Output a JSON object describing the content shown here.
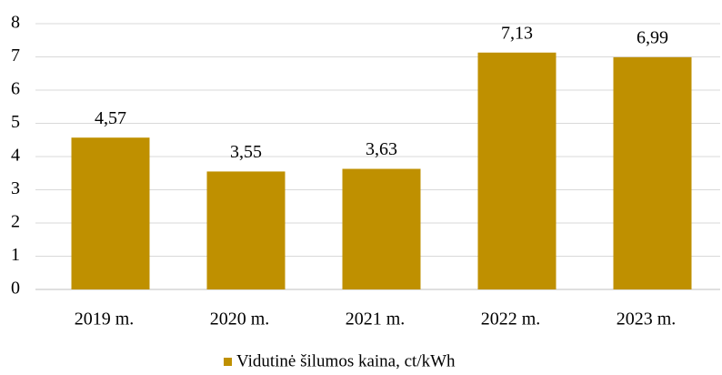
{
  "chart_data": {
    "type": "bar",
    "categories": [
      "2019 m.",
      "2020 m.",
      "2021 m.",
      "2022 m.",
      "2023 m."
    ],
    "series": [
      {
        "name": "Vidutinė šilumos kaina, ct/kWh",
        "color": "#bf9000",
        "values": [
          4.57,
          3.55,
          3.63,
          7.13,
          6.99
        ],
        "value_labels": [
          "4,57",
          "3,55",
          "3,63",
          "7,13",
          "6,99"
        ]
      }
    ],
    "ylim": [
      0,
      8
    ],
    "yticks": [
      0,
      1,
      2,
      3,
      4,
      5,
      6,
      7,
      8
    ],
    "grid": true,
    "legend": "bottom"
  }
}
